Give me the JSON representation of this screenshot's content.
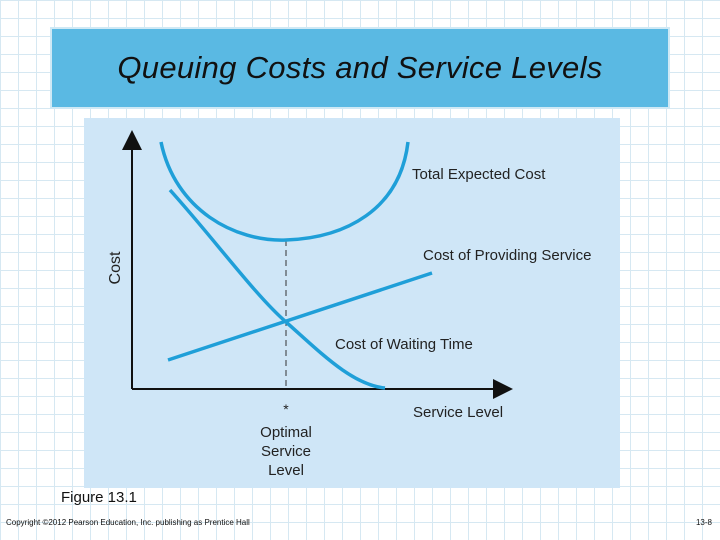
{
  "slide": {
    "title": "Queuing Costs and Service Levels",
    "figure_caption": "Figure 13.1",
    "copyright": "Copyright ©2012 Pearson Education, Inc. publishing as Prentice Hall",
    "page_number": "13-8"
  },
  "diagram": {
    "y_axis_label": "Cost",
    "x_axis_label": "Service Level",
    "optimum_marker": "*",
    "optimum_label_line1": "Optimal",
    "optimum_label_line2": "Service",
    "optimum_label_line3": "Level",
    "curves": {
      "total": "Total Expected Cost",
      "providing": "Cost of Providing Service",
      "waiting": "Cost of Waiting Time"
    },
    "colors": {
      "curve": "#1f9fd8",
      "axis": "#111111",
      "panel": "#cfe6f7",
      "title_bar": "#5ab9e3"
    }
  }
}
